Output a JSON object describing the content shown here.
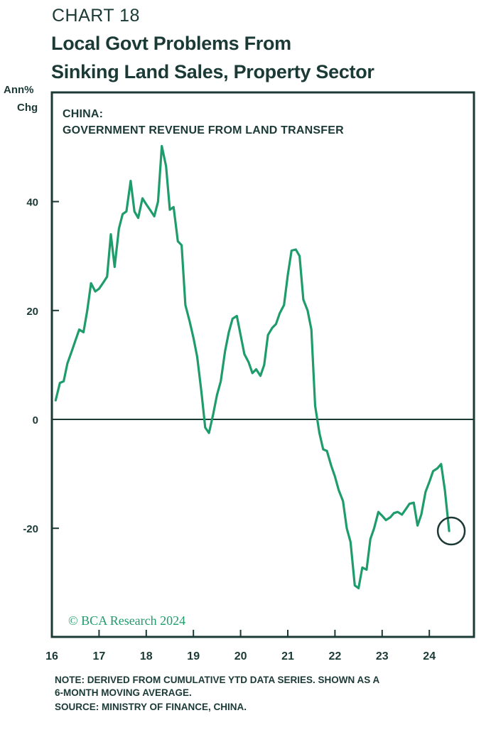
{
  "header": {
    "chart_number": "CHART 18",
    "title_line1": "Local Govt Problems From",
    "title_line2": "Sinking Land Sales, Property Sector"
  },
  "axis_unit": {
    "line1": "Ann%",
    "line2": "Chg"
  },
  "panel": {
    "line1": "CHINA:",
    "line2": "GOVERNMENT REVENUE FROM LAND TRANSFER"
  },
  "copyright": "© BCA Research 2024",
  "notes": [
    "NOTE: DERIVED FROM CUMULATIVE YTD DATA SERIES. SHOWN AS A",
    "6-MONTH MOVING AVERAGE.",
    "SOURCE: MINISTRY OF FINANCE, CHINA."
  ],
  "colors": {
    "line": "#1f9c6b",
    "frame": "#1b3a36",
    "text": "#1b3a36"
  },
  "chart_data": {
    "type": "line",
    "title": "Local Govt Problems From Sinking Land Sales, Property Sector",
    "ylabel": "Ann% Chg",
    "xlim": [
      2016,
      2024.9
    ],
    "ylim": [
      -40,
      60
    ],
    "x_ticks": [
      2016,
      2017,
      2018,
      2019,
      2020,
      2021,
      2022,
      2023,
      2024
    ],
    "x_tick_labels": [
      "16",
      "17",
      "18",
      "19",
      "20",
      "21",
      "22",
      "23",
      "24"
    ],
    "y_ticks": [
      -20,
      0,
      20,
      40
    ],
    "y_tick_labels": [
      "-20",
      "0",
      "20",
      "40"
    ],
    "zero_line": true,
    "grid": false,
    "highlight": {
      "x": 2024.42,
      "y": -20.5,
      "shape": "circle"
    },
    "series": [
      {
        "x": [
          2016.08,
          2016.17,
          2016.25,
          2016.33,
          2016.42,
          2016.5,
          2016.58,
          2016.67,
          2016.75,
          2016.83,
          2016.92,
          2017.0,
          2017.08,
          2017.17,
          2017.25,
          2017.33,
          2017.42,
          2017.5,
          2017.58,
          2017.67,
          2017.75,
          2017.83,
          2017.92,
          2018.0,
          2018.08,
          2018.17,
          2018.25,
          2018.33,
          2018.42,
          2018.5,
          2018.58,
          2018.67,
          2018.75,
          2018.83,
          2018.92,
          2019.0,
          2019.08,
          2019.17,
          2019.25,
          2019.33,
          2019.42,
          2019.5,
          2019.58,
          2019.67,
          2019.75,
          2019.83,
          2019.92,
          2020.0,
          2020.08,
          2020.17,
          2020.25,
          2020.33,
          2020.42,
          2020.5,
          2020.58,
          2020.67,
          2020.75,
          2020.83,
          2020.92,
          2021.0,
          2021.08,
          2021.17,
          2021.25,
          2021.33,
          2021.42,
          2021.5,
          2021.58,
          2021.67,
          2021.75,
          2021.83,
          2021.92,
          2022.0,
          2022.08,
          2022.17,
          2022.25,
          2022.33,
          2022.42,
          2022.5,
          2022.58,
          2022.67,
          2022.75,
          2022.83,
          2022.92,
          2023.0,
          2023.08,
          2023.17,
          2023.25,
          2023.33,
          2023.42,
          2023.5,
          2023.58,
          2023.67,
          2023.75,
          2023.83,
          2023.92,
          2024.0,
          2024.08,
          2024.17,
          2024.25,
          2024.33,
          2024.42
        ],
        "values": [
          3.5,
          6.7,
          7.0,
          10.3,
          12.5,
          14.5,
          16.5,
          16.0,
          20.0,
          25.0,
          23.5,
          24.0,
          25.0,
          26.2,
          34.0,
          28.0,
          35.0,
          37.7,
          38.2,
          43.8,
          38.2,
          37.0,
          40.6,
          39.5,
          38.5,
          37.3,
          40.0,
          50.2,
          46.5,
          38.5,
          39.0,
          32.7,
          32.0,
          21.0,
          18.0,
          15.0,
          11.5,
          5.0,
          -1.5,
          -2.5,
          1.0,
          4.5,
          7.0,
          12.5,
          16.0,
          18.5,
          19.0,
          15.5,
          12.0,
          10.5,
          8.5,
          9.2,
          8.0,
          10.0,
          15.5,
          16.8,
          17.5,
          19.5,
          21.0,
          26.5,
          31.0,
          31.2,
          30.0,
          22.0,
          20.0,
          16.5,
          2.5,
          -2.5,
          -5.5,
          -5.8,
          -8.5,
          -10.5,
          -13.0,
          -15.0,
          -20.0,
          -22.5,
          -30.5,
          -31.0,
          -27.2,
          -27.6,
          -22.0,
          -20.0,
          -17.0,
          -17.7,
          -18.5,
          -18.0,
          -17.2,
          -17.0,
          -17.5,
          -16.5,
          -15.5,
          -15.3,
          -19.5,
          -17.5,
          -13.3,
          -11.5,
          -9.5,
          -9.0,
          -8.2,
          -13.0,
          -20.5
        ]
      }
    ]
  }
}
